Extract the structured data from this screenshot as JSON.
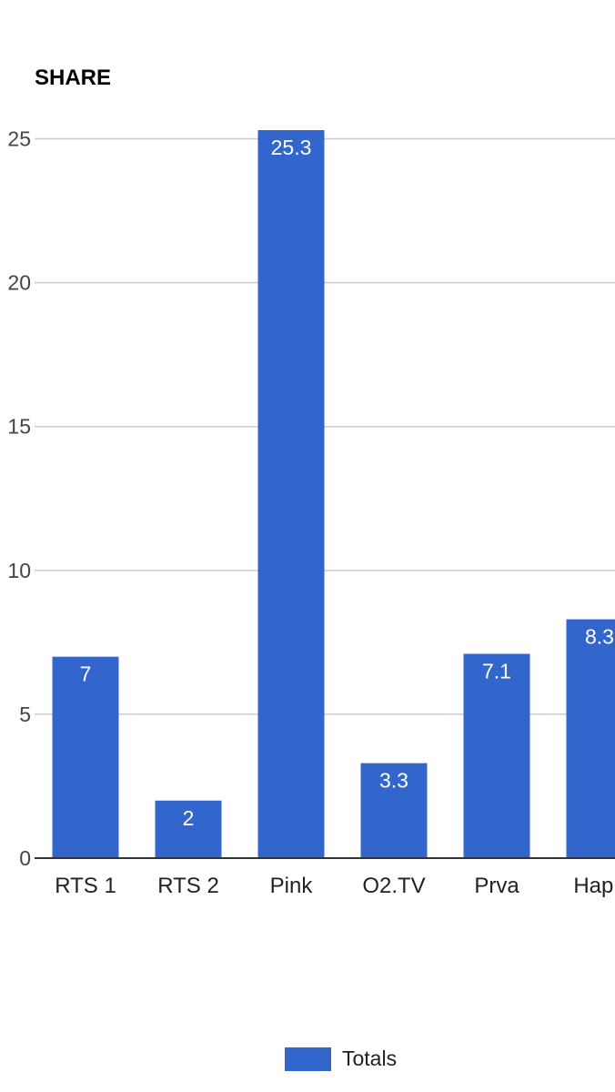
{
  "chart_data": {
    "type": "bar",
    "title": "SHARE",
    "xlabel": "",
    "ylabel": "",
    "ylim": [
      0,
      25.3
    ],
    "yticks": [
      0,
      5,
      10,
      15,
      20,
      25
    ],
    "categories": [
      "RTS 1",
      "RTS 2",
      "Pink",
      "O2.TV",
      "Prva",
      "Happ"
    ],
    "series": [
      {
        "name": "Totals",
        "values": [
          7,
          2,
          25.3,
          3.3,
          7.1,
          8.3
        ],
        "labels": [
          "7",
          "2",
          "25.3",
          "3.3",
          "7.1",
          "8.3"
        ],
        "color": "#3366cc"
      }
    ],
    "grid": true,
    "legend_position": "bottom"
  }
}
